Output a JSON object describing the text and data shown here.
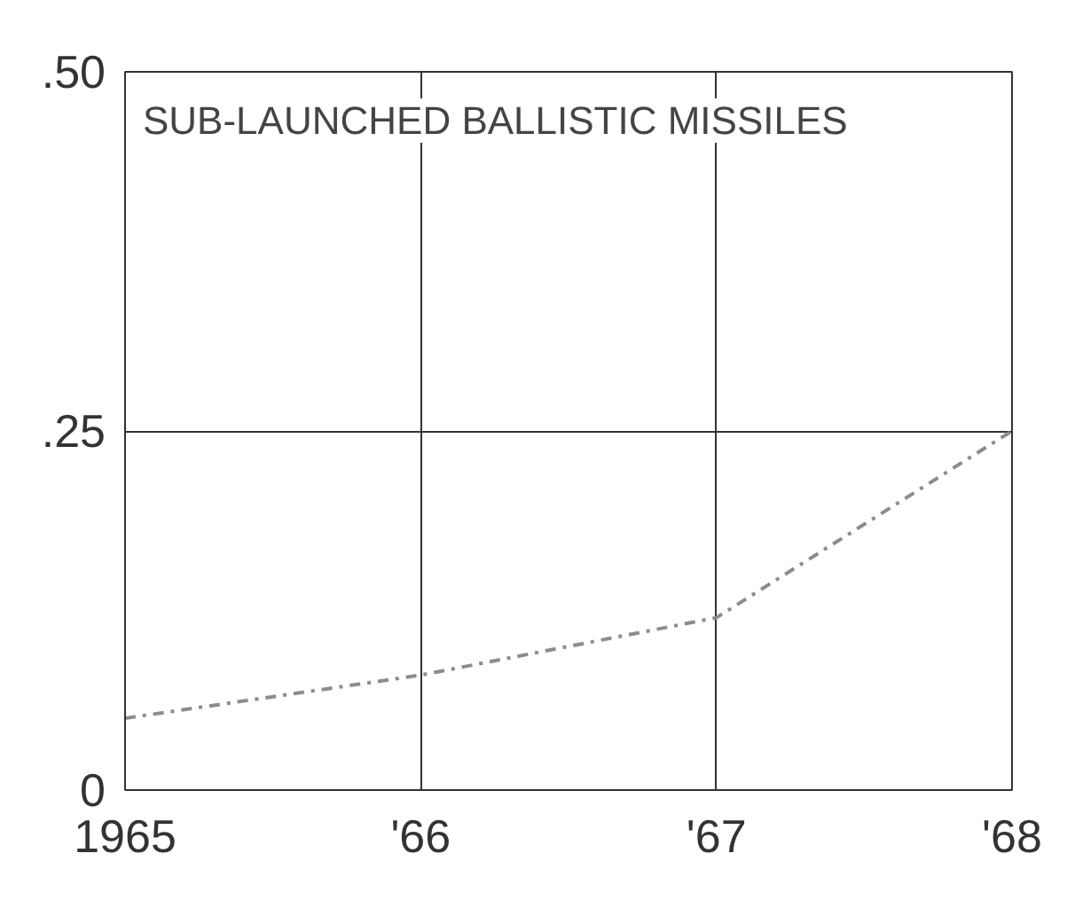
{
  "chart_data": {
    "type": "line",
    "title": "SUB-LAUNCHED BALLISTIC MISSILES",
    "x": [
      1965,
      1966,
      1967,
      1968
    ],
    "series": [
      {
        "color": "#8c8c8c",
        "values": [
          0.05,
          0.08,
          0.12,
          0.25
        ]
      }
    ],
    "xlim": [
      1965,
      1968
    ],
    "xticks": [
      {
        "value": 1965,
        "label": "1965"
      },
      {
        "value": 1966,
        "label": "'66"
      },
      {
        "value": 1967,
        "label": "'67"
      },
      {
        "value": 1968,
        "label": "'68"
      }
    ],
    "ylim": [
      0,
      0.5
    ],
    "yticks": [
      {
        "value": 0,
        "label": "0"
      },
      {
        "value": 0.25,
        "label": ".25"
      },
      {
        "value": 0.5,
        "label": ".50"
      }
    ],
    "grid": true,
    "line_style": "dashed"
  }
}
